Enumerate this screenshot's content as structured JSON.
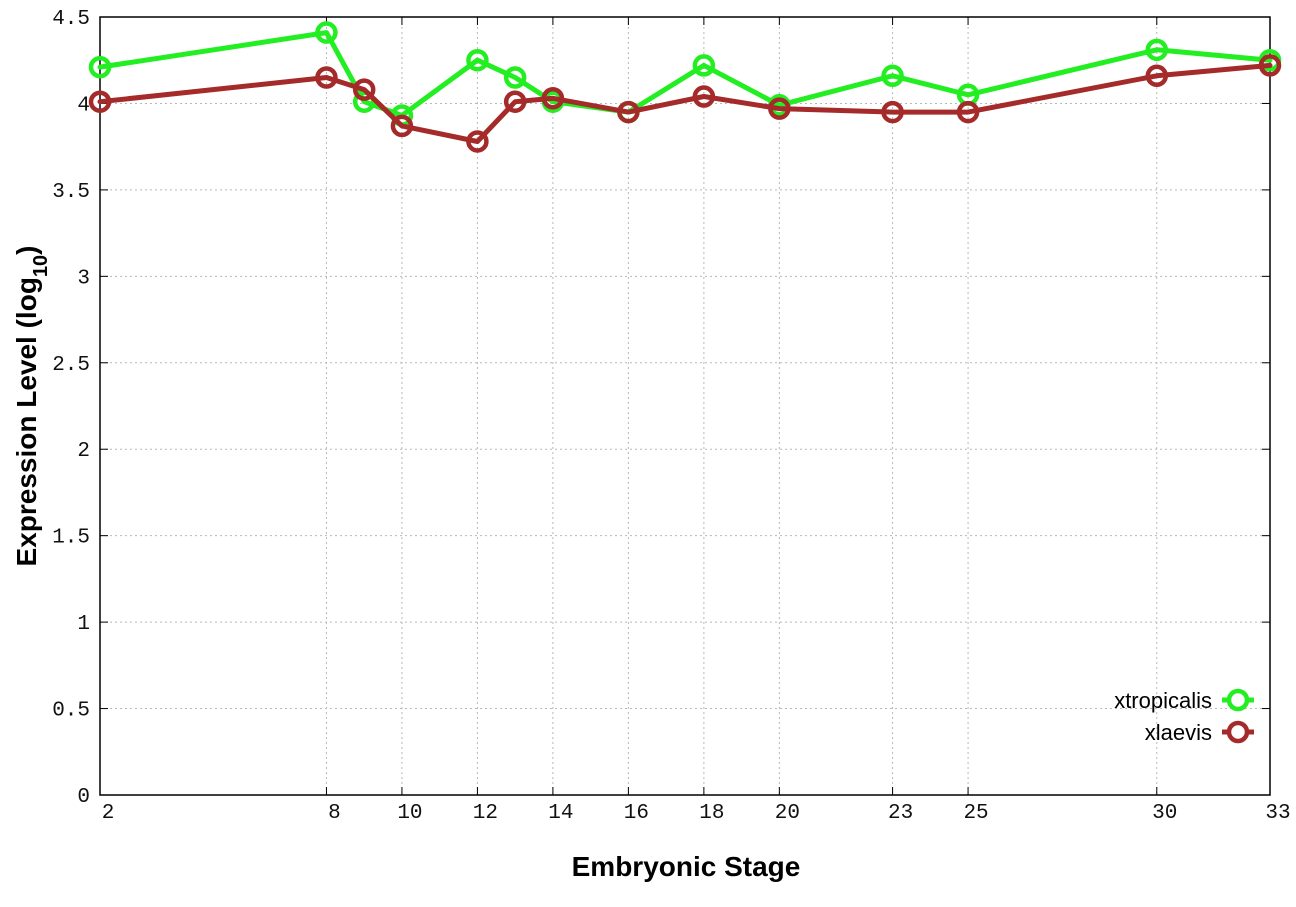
{
  "chart_data": {
    "type": "line",
    "xlabel": "Embryonic Stage",
    "ylabel_main": "Expression Level (log",
    "ylabel_sub": "10",
    "ylabel_close": ")",
    "x_ticks": [
      "2",
      "8",
      "10",
      "12",
      "14",
      "16",
      "18",
      "20",
      "23",
      "25",
      "30",
      "33"
    ],
    "y_ticks": [
      "0",
      "0.5",
      "1",
      "1.5",
      "2",
      "2.5",
      "3",
      "3.5",
      "4",
      "4.5"
    ],
    "ylim": [
      0,
      4.5
    ],
    "xlim": [
      2,
      33
    ],
    "grid": true,
    "legend_position": "bottom-right",
    "series": [
      {
        "name": "xtropicalis",
        "color": "#22ee22",
        "points": [
          {
            "x": 2,
            "y": 4.21
          },
          {
            "x": 8,
            "y": 4.41
          },
          {
            "x": 9,
            "y": 4.01
          },
          {
            "x": 10,
            "y": 3.93
          },
          {
            "x": 12,
            "y": 4.25
          },
          {
            "x": 13,
            "y": 4.15
          },
          {
            "x": 14,
            "y": 4.01
          },
          {
            "x": 16,
            "y": 3.95
          },
          {
            "x": 18,
            "y": 4.22
          },
          {
            "x": 20,
            "y": 3.99
          },
          {
            "x": 23,
            "y": 4.16
          },
          {
            "x": 25,
            "y": 4.05
          },
          {
            "x": 30,
            "y": 4.31
          },
          {
            "x": 33,
            "y": 4.25
          }
        ]
      },
      {
        "name": "xlaevis",
        "color": "#a52a2a",
        "points": [
          {
            "x": 2,
            "y": 4.01
          },
          {
            "x": 8,
            "y": 4.15
          },
          {
            "x": 9,
            "y": 4.08
          },
          {
            "x": 10,
            "y": 3.87
          },
          {
            "x": 12,
            "y": 3.78
          },
          {
            "x": 13,
            "y": 4.01
          },
          {
            "x": 14,
            "y": 4.03
          },
          {
            "x": 16,
            "y": 3.95
          },
          {
            "x": 18,
            "y": 4.04
          },
          {
            "x": 20,
            "y": 3.97
          },
          {
            "x": 23,
            "y": 3.95
          },
          {
            "x": 25,
            "y": 3.95
          },
          {
            "x": 30,
            "y": 4.16
          },
          {
            "x": 33,
            "y": 4.22
          }
        ]
      }
    ]
  }
}
